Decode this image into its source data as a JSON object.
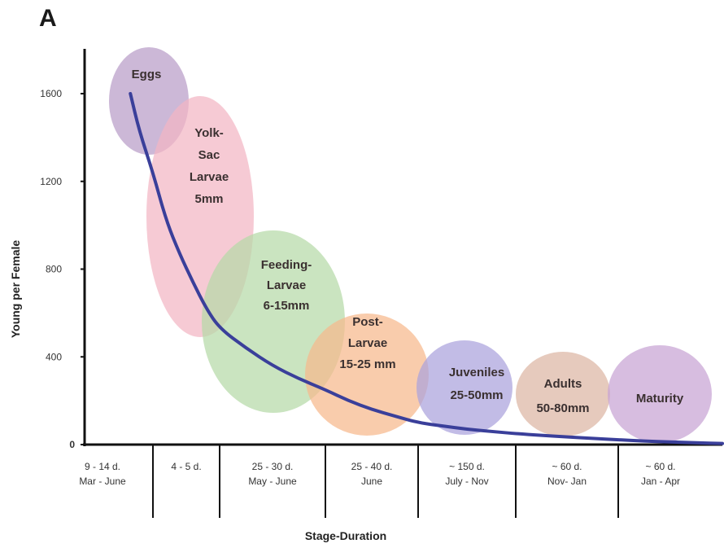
{
  "panel_label": "A",
  "chart_data": {
    "type": "line",
    "title": "",
    "xlabel": "Stage-Duration",
    "ylabel": "Young per Female",
    "ylim": [
      0,
      1800
    ],
    "yticks": [
      "0",
      "400",
      "800",
      "1200",
      "1600"
    ],
    "ytick_values": [
      0,
      400,
      800,
      1200,
      1600
    ],
    "grid": false,
    "line_color": "#3a3f9a",
    "categories": [
      {
        "lines": [
          "9 - 14 d.",
          "Mar - June"
        ]
      },
      {
        "lines": [
          "4 - 5 d."
        ]
      },
      {
        "lines": [
          "25 - 30 d.",
          "May - June"
        ]
      },
      {
        "lines": [
          "25 - 40 d.",
          "June"
        ]
      },
      {
        "lines": [
          "~ 150 d.",
          "July - Nov"
        ]
      },
      {
        "lines": [
          "~ 60 d.",
          "Nov- Jan"
        ]
      },
      {
        "lines": [
          "~ 60 d.",
          "Jan - Apr"
        ]
      }
    ],
    "series": [
      {
        "x": [
          0.67,
          0.8,
          1.0,
          1.2,
          1.4,
          1.6,
          1.8,
          2.0,
          2.25,
          2.5,
          2.75,
          3.0,
          3.25,
          3.5,
          3.75,
          4.0,
          4.25,
          4.5,
          4.75,
          5.0,
          5.25,
          5.5,
          5.75,
          6.0,
          6.25,
          6.5,
          6.75,
          7.0
        ],
        "values": [
          1600,
          1430,
          1240,
          1020,
          870,
          740,
          620,
          530,
          440,
          360,
          300,
          250,
          200,
          160,
          130,
          100,
          85,
          70,
          60,
          50,
          42,
          35,
          28,
          22,
          16,
          12,
          8,
          5
        ]
      }
    ],
    "stages": [
      {
        "lines": [
          "Eggs"
        ],
        "color": "#b89cc8"
      },
      {
        "lines": [
          "Yolk-",
          "Sac",
          "Larvae",
          "5mm"
        ],
        "color": "#f2b6c4"
      },
      {
        "lines": [
          "Feeding-",
          "Larvae",
          "6-15mm"
        ],
        "color": "#b6d9a8"
      },
      {
        "lines": [
          "Post-",
          "Larvae",
          "15-25 mm"
        ],
        "color": "#f6b98c"
      },
      {
        "lines": [
          "Juveniles",
          "25-50mm"
        ],
        "color": "#aaa2dc"
      },
      {
        "lines": [
          "Adults",
          "50-80mm"
        ],
        "color": "#dcb6a4"
      },
      {
        "lines": [
          "Maturity"
        ],
        "color": "#c7a4d4"
      }
    ]
  }
}
